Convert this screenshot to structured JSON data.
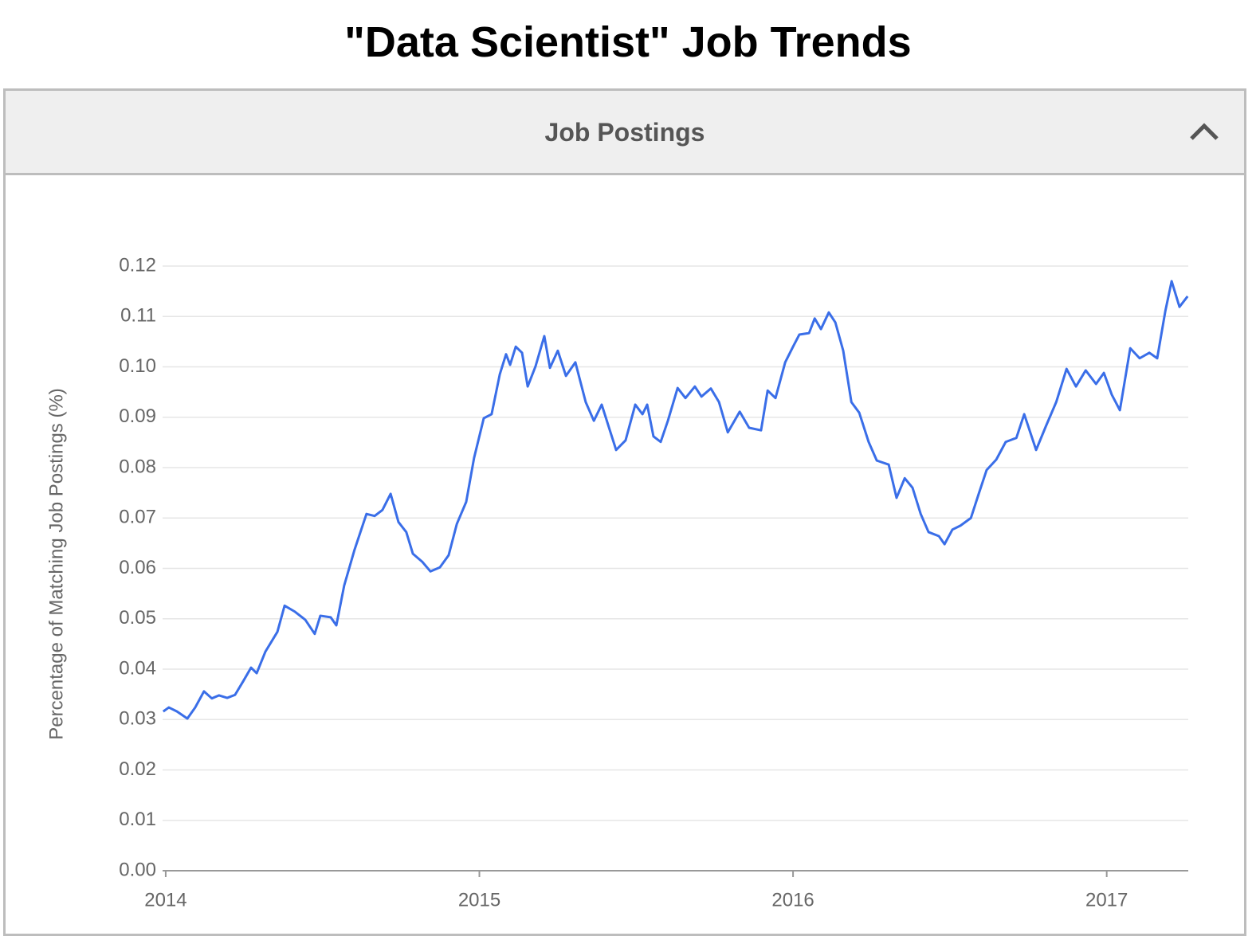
{
  "header": {
    "title": "\"Data Scientist\" Job Trends"
  },
  "panel": {
    "title": "Job Postings"
  },
  "chart_data": {
    "type": "line",
    "y_label": "Percentage of Matching Job Postings (%)",
    "xlim": [
      2013.99,
      2017.26
    ],
    "xticks": [
      2014,
      2015,
      2016,
      2017
    ],
    "ylim": [
      0,
      0.12
    ],
    "yticks": [
      {
        "value": 0,
        "label": "0.00"
      },
      0.01,
      0.02,
      0.03,
      0.04,
      0.05,
      0.06,
      0.07,
      0.08,
      0.09,
      {
        "value": 0.1,
        "label": "0.10"
      },
      0.11,
      0.12
    ],
    "grid": true,
    "series": [
      {
        "color": "#3a6ee8",
        "x": [
          2013.992,
          2014.01,
          2014.036,
          2014.069,
          2014.094,
          2014.122,
          2014.147,
          2014.17,
          2014.196,
          2014.221,
          2014.247,
          2014.272,
          2014.29,
          2014.318,
          2014.356,
          2014.379,
          2014.412,
          2014.445,
          2014.475,
          2014.493,
          2014.526,
          2014.544,
          2014.569,
          2014.602,
          2014.64,
          2014.666,
          2014.691,
          2014.717,
          2014.742,
          2014.767,
          2014.788,
          2014.818,
          2014.844,
          2014.874,
          2014.902,
          2014.928,
          2014.958,
          2014.983,
          2015.014,
          2015.039,
          2015.065,
          2015.085,
          2015.098,
          2015.116,
          2015.136,
          2015.154,
          2015.179,
          2015.207,
          2015.225,
          2015.25,
          2015.276,
          2015.306,
          2015.339,
          2015.365,
          2015.39,
          2015.416,
          2015.436,
          2015.466,
          2015.497,
          2015.52,
          2015.535,
          2015.555,
          2015.578,
          2015.601,
          2015.632,
          2015.657,
          2015.687,
          2015.708,
          2015.738,
          2015.764,
          2015.792,
          2015.83,
          2015.86,
          2015.898,
          2015.919,
          2015.944,
          2015.975,
          2016.0,
          2016.02,
          2016.051,
          2016.069,
          2016.089,
          2016.114,
          2016.135,
          2016.16,
          2016.186,
          2016.211,
          2016.241,
          2016.267,
          2016.305,
          2016.33,
          2016.356,
          2016.381,
          2016.407,
          2016.432,
          2016.465,
          2016.483,
          2016.508,
          2016.534,
          2016.567,
          2016.592,
          2016.617,
          2016.648,
          2016.678,
          2016.712,
          2016.737,
          2016.775,
          2016.806,
          2016.839,
          2016.872,
          2016.902,
          2016.933,
          2016.966,
          2016.991,
          2017.016,
          2017.042,
          2017.075,
          2017.105,
          2017.136,
          2017.161,
          2017.187,
          2017.207,
          2017.232,
          2017.258
        ],
        "values": [
          0.0316,
          0.0324,
          0.0316,
          0.0302,
          0.0324,
          0.0356,
          0.0342,
          0.0348,
          0.0343,
          0.0349,
          0.0376,
          0.0403,
          0.0392,
          0.0435,
          0.0474,
          0.0526,
          0.0514,
          0.0498,
          0.047,
          0.0506,
          0.0503,
          0.0487,
          0.0566,
          0.0637,
          0.0708,
          0.0704,
          0.0716,
          0.0748,
          0.0692,
          0.0672,
          0.0629,
          0.0613,
          0.0594,
          0.0602,
          0.0626,
          0.0688,
          0.0732,
          0.0819,
          0.0898,
          0.0906,
          0.0985,
          0.1025,
          0.1004,
          0.104,
          0.1028,
          0.0961,
          0.1001,
          0.1061,
          0.0998,
          0.1032,
          0.0982,
          0.1009,
          0.093,
          0.0893,
          0.0925,
          0.0874,
          0.0835,
          0.0854,
          0.0925,
          0.0906,
          0.0925,
          0.0862,
          0.0851,
          0.0893,
          0.0958,
          0.0938,
          0.0961,
          0.0941,
          0.0957,
          0.093,
          0.087,
          0.0911,
          0.0879,
          0.0874,
          0.0953,
          0.0938,
          0.1009,
          0.104,
          0.1064,
          0.1067,
          0.1096,
          0.1075,
          0.1108,
          0.1088,
          0.1032,
          0.093,
          0.0909,
          0.0851,
          0.0814,
          0.0806,
          0.074,
          0.0779,
          0.076,
          0.0708,
          0.0672,
          0.0664,
          0.0648,
          0.0677,
          0.0685,
          0.07,
          0.0748,
          0.0795,
          0.0816,
          0.0851,
          0.0859,
          0.0906,
          0.0835,
          0.0882,
          0.093,
          0.0996,
          0.0961,
          0.0993,
          0.0966,
          0.0988,
          0.0945,
          0.0914,
          0.1037,
          0.1017,
          0.1028,
          0.1017,
          0.1111,
          0.117,
          0.1119,
          0.114
        ]
      }
    ]
  }
}
